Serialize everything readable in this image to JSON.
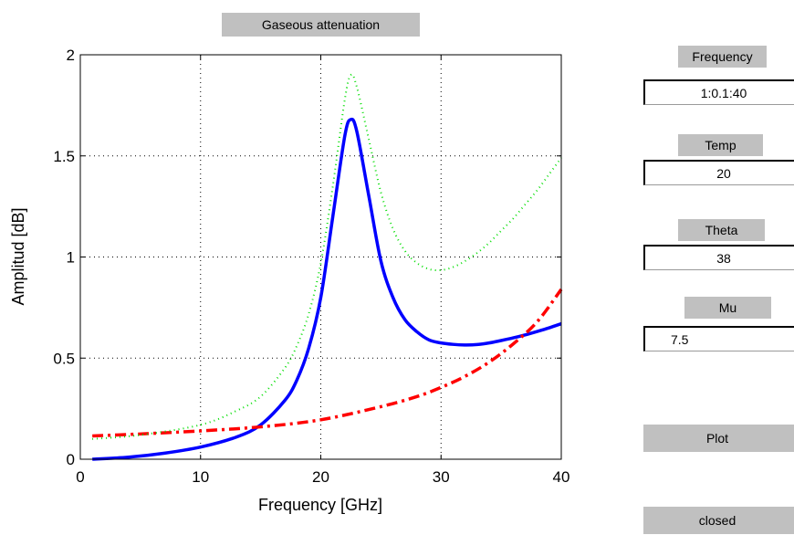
{
  "figure": {
    "title": "Gaseous attenuation"
  },
  "chart_data": {
    "type": "line",
    "xlabel": "Frequency [GHz]",
    "ylabel": "Amplitud [dB]",
    "xlim": [
      0,
      40
    ],
    "ylim": [
      0,
      2
    ],
    "xticks": [
      0,
      10,
      20,
      30,
      40
    ],
    "yticks": [
      0,
      0.5,
      1,
      1.5,
      2
    ],
    "ytick_labels": [
      "0",
      "0.5",
      "1",
      "1.5",
      "2"
    ],
    "grid": true,
    "legend": "none",
    "series": [
      {
        "style": "solid",
        "color": "#0000ff",
        "x": [
          1,
          4,
          7,
          10,
          13,
          15,
          17,
          18,
          19,
          20,
          21,
          22,
          22.5,
          23,
          24,
          25,
          26,
          27,
          28,
          29,
          30,
          31,
          32,
          33,
          34,
          35,
          36,
          37,
          38,
          39,
          40
        ],
        "y": [
          0.0,
          0.01,
          0.03,
          0.06,
          0.11,
          0.17,
          0.29,
          0.39,
          0.55,
          0.8,
          1.2,
          1.6,
          1.68,
          1.62,
          1.3,
          0.98,
          0.8,
          0.69,
          0.63,
          0.59,
          0.575,
          0.568,
          0.565,
          0.567,
          0.575,
          0.587,
          0.6,
          0.615,
          0.632,
          0.65,
          0.67
        ]
      },
      {
        "style": "dashdot",
        "color": "#ff0000",
        "x": [
          1,
          5,
          10,
          15,
          20,
          25,
          28,
          30,
          32,
          34,
          36,
          38,
          40
        ],
        "y": [
          0.115,
          0.125,
          0.14,
          0.16,
          0.195,
          0.26,
          0.31,
          0.355,
          0.41,
          0.48,
          0.57,
          0.68,
          0.84
        ]
      },
      {
        "style": "dotted",
        "color": "#00dd00",
        "x": [
          1,
          5,
          10,
          13,
          15,
          17,
          18,
          19,
          20,
          21,
          22,
          22.5,
          23,
          24,
          25,
          26,
          27,
          28,
          29,
          30,
          31,
          32,
          33,
          34,
          35,
          36,
          37,
          38,
          39,
          40
        ],
        "y": [
          0.1,
          0.12,
          0.17,
          0.24,
          0.31,
          0.45,
          0.56,
          0.72,
          0.97,
          1.35,
          1.78,
          1.9,
          1.84,
          1.58,
          1.32,
          1.14,
          1.03,
          0.97,
          0.94,
          0.935,
          0.95,
          0.98,
          1.02,
          1.07,
          1.13,
          1.19,
          1.26,
          1.33,
          1.41,
          1.49
        ]
      }
    ]
  },
  "panel": {
    "frequency_label": "Frequency",
    "frequency_value": "1:0.1:40",
    "temp_label": "Temp",
    "temp_value": "20",
    "theta_label": "Theta",
    "theta_value": "38",
    "mu_label": "Mu",
    "mu_value": "7.5",
    "plot_button": "Plot",
    "closed_button": "closed"
  }
}
